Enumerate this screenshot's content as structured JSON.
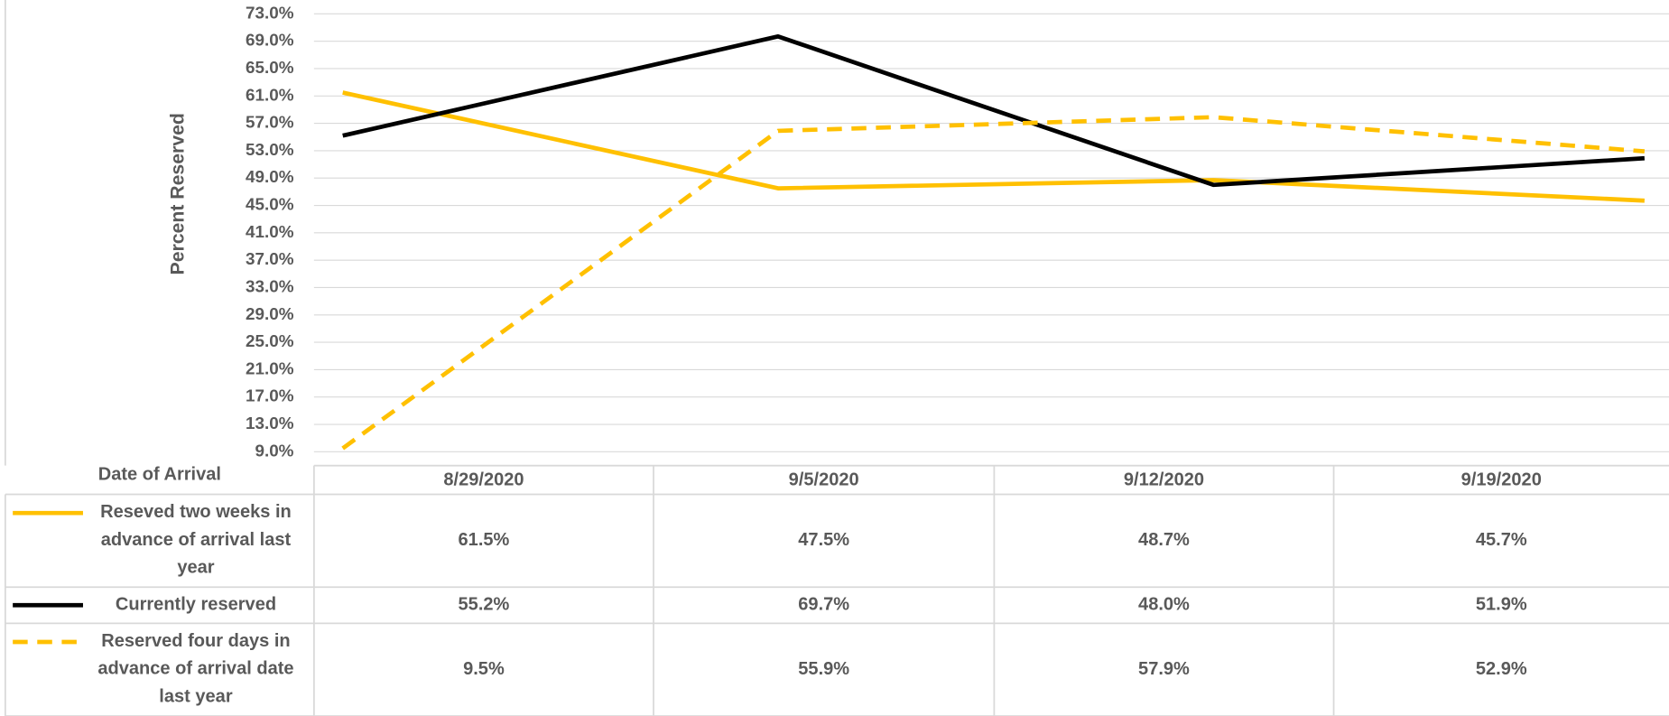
{
  "chart_data": {
    "type": "line",
    "y_label": "Percent  Reserved",
    "x_label": "Date of Arrival",
    "categories": [
      "8/29/2020",
      "9/5/2020",
      "9/12/2020",
      "9/19/2020"
    ],
    "series": [
      {
        "name": "Reseved two weeks in advance of arrival last year",
        "color": "#ffc000",
        "line_style": "solid",
        "values": [
          61.5,
          47.5,
          48.7,
          45.7
        ],
        "value_labels": [
          "61.5%",
          "47.5%",
          "48.7%",
          "45.7%"
        ]
      },
      {
        "name": "Currently reserved",
        "color": "#000000",
        "line_style": "solid",
        "values": [
          55.2,
          69.7,
          48.0,
          51.9
        ],
        "value_labels": [
          "55.2%",
          "69.7%",
          "48.0%",
          "51.9%"
        ]
      },
      {
        "name": "Reserved four days in advance of arrival date last year",
        "color": "#ffc000",
        "line_style": "dashed",
        "values": [
          9.5,
          55.9,
          57.9,
          52.9
        ],
        "value_labels": [
          "9.5%",
          "55.9%",
          "57.9%",
          "52.9%"
        ]
      }
    ],
    "ylim": [
      9,
      73
    ],
    "yticks": [
      {
        "value": 9,
        "label": "9.0%"
      },
      {
        "value": 13,
        "label": "13.0%"
      },
      {
        "value": 17,
        "label": "17.0%"
      },
      {
        "value": 21,
        "label": "21.0%"
      },
      {
        "value": 25,
        "label": "25.0%"
      },
      {
        "value": 29,
        "label": "29.0%"
      },
      {
        "value": 33,
        "label": "33.0%"
      },
      {
        "value": 37,
        "label": "37.0%"
      },
      {
        "value": 41,
        "label": "41.0%"
      },
      {
        "value": 45,
        "label": "45.0%"
      },
      {
        "value": 49,
        "label": "49.0%"
      },
      {
        "value": 53,
        "label": "53.0%"
      },
      {
        "value": 57,
        "label": "57.0%"
      },
      {
        "value": 61,
        "label": "61.0%"
      },
      {
        "value": 65,
        "label": "65.0%"
      },
      {
        "value": 69,
        "label": "69.0%"
      },
      {
        "value": 73,
        "label": "73.0%"
      }
    ],
    "grid": true
  }
}
